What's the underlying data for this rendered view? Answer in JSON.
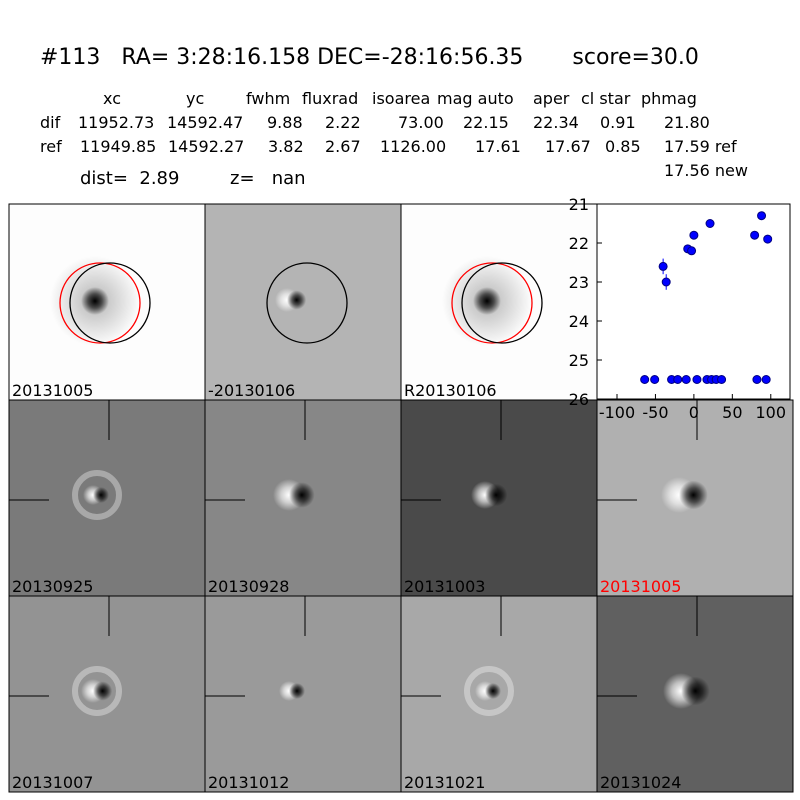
{
  "header": {
    "title": "#113   RA= 3:28:16.158 DEC=-28:16:56.35       score=30.0"
  },
  "table": {
    "columns": [
      "xc",
      "yc",
      "fwhm",
      "fluxrad",
      "isoarea",
      "mag auto",
      "aper",
      "cl star",
      "phmag"
    ],
    "rows": [
      {
        "label": "dif",
        "cells": [
          "11952.73",
          "14592.47",
          "9.88",
          "2.22",
          "73.00",
          "22.15",
          "22.34",
          "0.91",
          "21.80"
        ]
      },
      {
        "label": "ref",
        "cells": [
          "11949.85",
          "14592.27",
          "3.82",
          "2.67",
          "1126.00",
          "17.61",
          "17.67",
          "0.85",
          "17.59 ref"
        ]
      }
    ],
    "extra": "17.56 new"
  },
  "info": [
    "dist=  2.89",
    "z=   nan"
  ],
  "stamps": [
    {
      "label": "20131005"
    },
    {
      "label": "-20130106"
    },
    {
      "label": "R20130106"
    },
    {
      "label": "20130925"
    },
    {
      "label": "20130928"
    },
    {
      "label": "20131003"
    },
    {
      "label": "20131005",
      "label_color": "#ff0000"
    },
    {
      "label": "20131007"
    },
    {
      "label": "20131012"
    },
    {
      "label": "20131021"
    },
    {
      "label": "20131024"
    }
  ],
  "chart_data": {
    "type": "scatter",
    "x": [
      -40,
      -36,
      -8,
      -3,
      0,
      21,
      79,
      88,
      96,
      -64,
      -51,
      -29,
      -21,
      -10,
      4,
      17,
      23,
      29,
      36,
      82,
      94
    ],
    "series": [
      {
        "color": "#0000ff",
        "values": [
          22.6,
          23.0,
          22.15,
          22.2,
          21.8,
          21.5,
          21.8,
          21.3,
          21.9,
          25.5,
          25.5,
          25.5,
          25.5,
          25.5,
          25.5,
          25.5,
          25.5,
          25.5,
          25.5,
          25.5,
          25.5
        ],
        "errors": [
          0.2,
          0.2,
          0.05,
          0.05,
          0.05,
          0.05,
          0.05,
          0.05,
          0.05,
          null,
          null,
          null,
          null,
          null,
          null,
          null,
          null,
          null,
          null,
          null,
          null
        ]
      }
    ],
    "xlim": [
      -126,
      125
    ],
    "ylim": [
      26,
      21
    ],
    "xticks": [
      -100,
      -50,
      0,
      50,
      100
    ],
    "yticks": [
      21,
      22,
      23,
      24,
      25,
      26
    ]
  }
}
